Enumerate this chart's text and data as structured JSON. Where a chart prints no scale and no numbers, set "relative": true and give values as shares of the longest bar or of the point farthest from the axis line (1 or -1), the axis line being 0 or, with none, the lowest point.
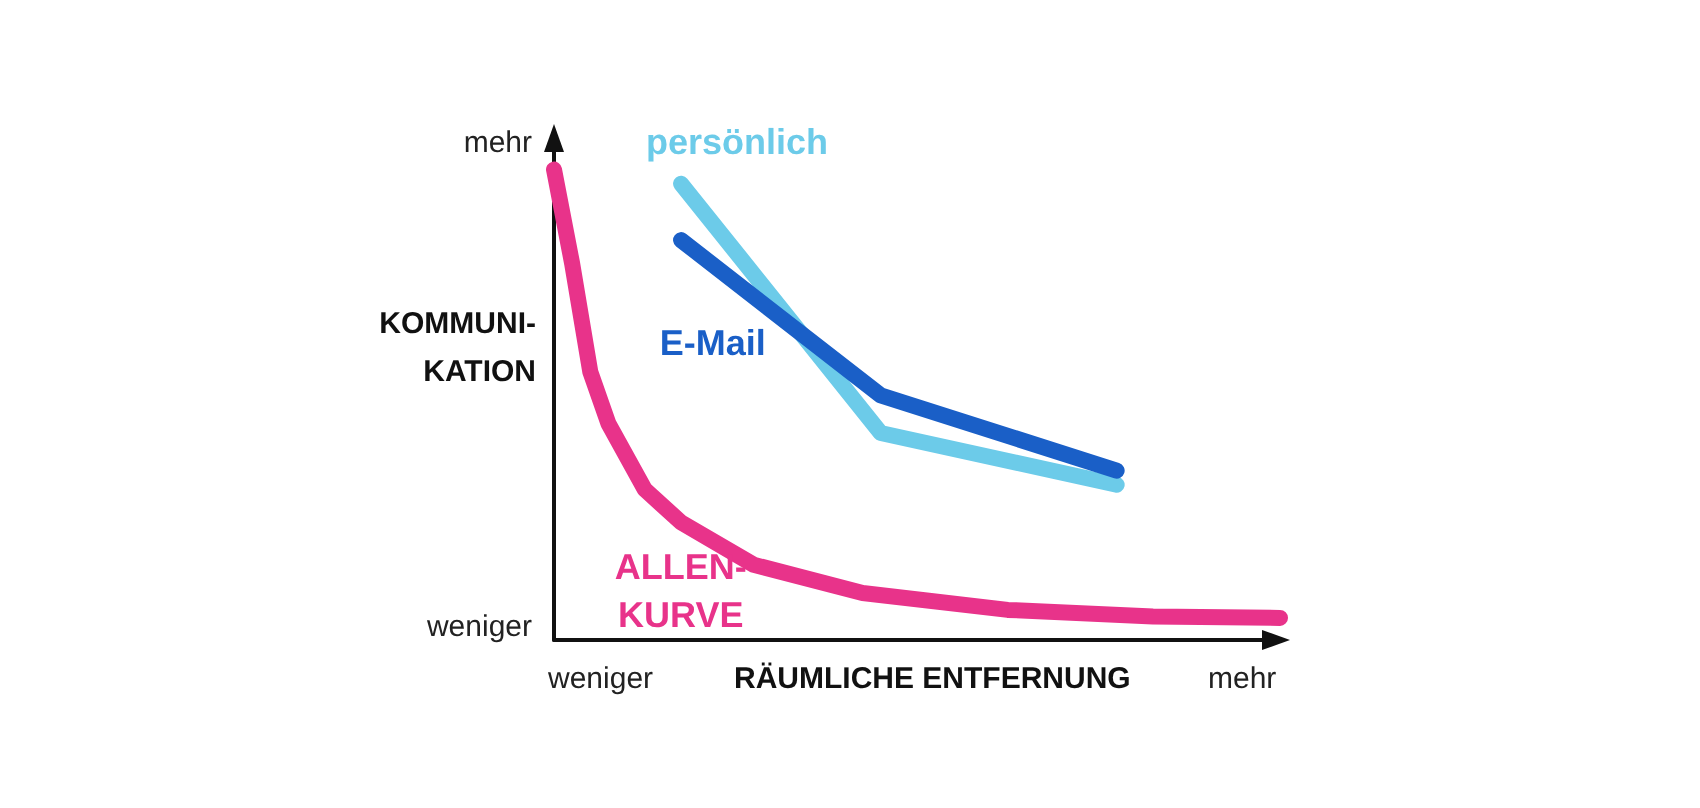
{
  "chart_data": {
    "type": "line",
    "relative": true,
    "xlabel": "RÄUMLICHE ENTFERNUNG",
    "ylabel": "KOMMUNI-\nKATION",
    "annotations": [
      "mehr",
      "weniger",
      "weniger",
      "mehr"
    ],
    "categories": [
      null,
      null,
      null,
      null,
      null,
      null,
      null,
      null,
      null,
      null,
      null,
      null,
      null,
      null,
      null,
      null,
      null,
      null,
      null,
      null,
      null,
      null,
      null,
      null,
      null,
      null,
      null,
      null,
      null,
      null,
      null,
      null,
      null,
      null,
      null,
      null,
      null,
      null,
      null,
      null,
      null
    ],
    "grid": false,
    "legend": false,
    "marker": "none",
    "line_style": "solid",
    "series": [
      {
        "name": "ALLEN-\nKURVE",
        "color": "#e8338a",
        "values": [
          1.0,
          0.8,
          0.57,
          0.46,
          null,
          0.32,
          null,
          0.25,
          null,
          null,
          null,
          0.16,
          null,
          null,
          null,
          null,
          null,
          0.1,
          null,
          null,
          null,
          null,
          null,
          null,
          null,
          0.064,
          null,
          null,
          null,
          null,
          null,
          null,
          null,
          0.05,
          null,
          null,
          null,
          null,
          null,
          null,
          0.047
        ]
      },
      {
        "name": "persönlich",
        "color": "#6ccbe9",
        "values": [
          null,
          null,
          null,
          null,
          null,
          null,
          null,
          0.97,
          null,
          null,
          null,
          null,
          null,
          null,
          null,
          null,
          null,
          null,
          0.44,
          null,
          null,
          null,
          null,
          null,
          null,
          null,
          null,
          null,
          null,
          null,
          null,
          0.33,
          null,
          null,
          null,
          null,
          null,
          null,
          null,
          null,
          null
        ]
      },
      {
        "name": "E-Mail",
        "color": "#1a5fc7",
        "values": [
          null,
          null,
          null,
          null,
          null,
          null,
          null,
          0.85,
          null,
          null,
          null,
          null,
          null,
          null,
          null,
          null,
          null,
          null,
          0.52,
          null,
          null,
          null,
          null,
          null,
          null,
          null,
          null,
          null,
          null,
          null,
          null,
          0.36,
          null,
          null,
          null,
          null,
          null,
          null,
          null,
          null,
          null
        ]
      }
    ]
  }
}
